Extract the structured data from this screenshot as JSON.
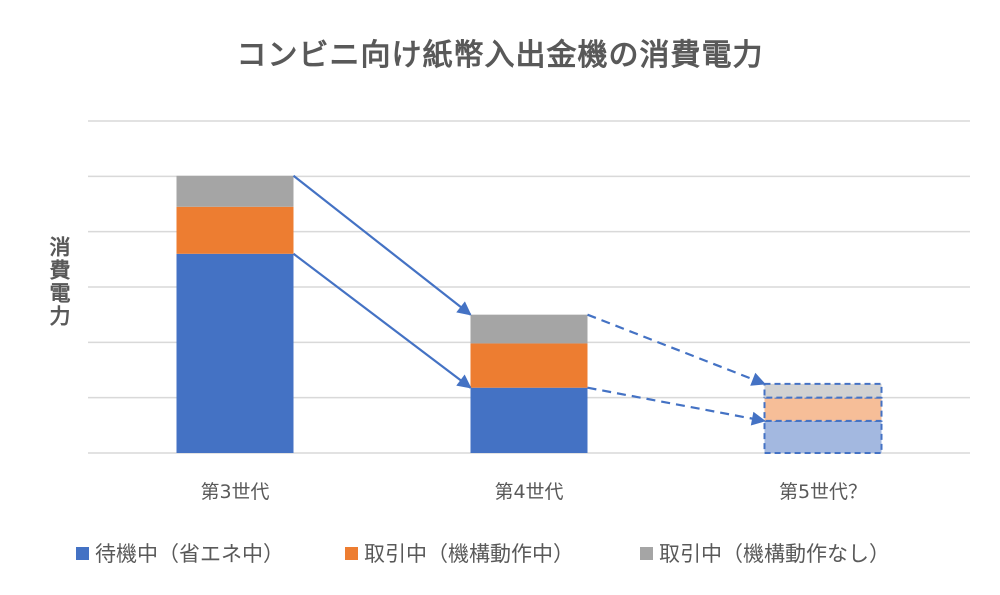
{
  "chart_data": {
    "type": "bar",
    "stacked": true,
    "title": "コンビニ向け紙幣入出金機の消費電力",
    "xlabel": "",
    "ylabel": "消費電力",
    "ylim": [
      0,
      6
    ],
    "grid": true,
    "y_tick_labels_shown": false,
    "categories": [
      "第3世代",
      "第4世代",
      "第5世代？"
    ],
    "series": [
      {
        "name": "待機中（省エネ中）",
        "color": "#4472C4",
        "values": [
          3.6,
          1.18,
          0.58
        ]
      },
      {
        "name": "取引中（機構動作中）",
        "color": "#ED7D31",
        "values": [
          0.85,
          0.8,
          0.42
        ]
      },
      {
        "name": "取引中（機構動作なし）",
        "color": "#A5A5A5",
        "values": [
          0.56,
          0.52,
          0.25
        ]
      }
    ],
    "projected_category": "第5世代？",
    "projected_colors": [
      "#A3B8E0",
      "#F6BE98",
      "#D2D2D2"
    ],
    "arrow_color": "#4472C4",
    "legend_position": "bottom"
  }
}
